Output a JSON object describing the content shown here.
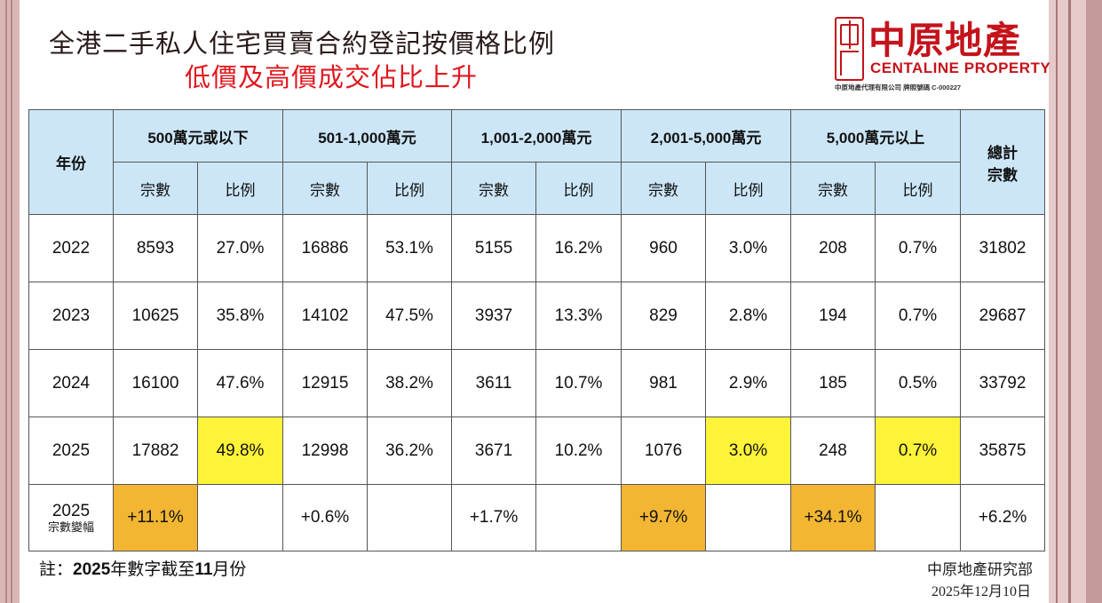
{
  "title": "全港二手私人住宅買賣合約登記按價格比例",
  "subtitle": "低價及高價成交佔比上升",
  "logo": {
    "chinese": "中原地產",
    "english": "CENTALINE PROPERTY",
    "license": "中原地產代理有限公司 牌照號碼 C-000227",
    "brand_color": "#c4131b"
  },
  "table": {
    "year_header": "年份",
    "bands": [
      "500萬元或以下",
      "501-1,000萬元",
      "1,001-2,000萬元",
      "2,001-5,000萬元",
      "5,000萬元以上"
    ],
    "count_label": "宗數",
    "ratio_label": "比例",
    "total_header": "總計\n宗數",
    "rows": [
      {
        "year": "2022",
        "cells": [
          "8593",
          "27.0%",
          "16886",
          "53.1%",
          "5155",
          "16.2%",
          "960",
          "3.0%",
          "208",
          "0.7%"
        ],
        "total": "31802"
      },
      {
        "year": "2023",
        "cells": [
          "10625",
          "35.8%",
          "14102",
          "47.5%",
          "3937",
          "13.3%",
          "829",
          "2.8%",
          "194",
          "0.7%"
        ],
        "total": "29687"
      },
      {
        "year": "2024",
        "cells": [
          "16100",
          "47.6%",
          "12915",
          "38.2%",
          "3611",
          "10.7%",
          "981",
          "2.9%",
          "185",
          "0.5%"
        ],
        "total": "33792"
      },
      {
        "year": "2025",
        "cells": [
          "17882",
          "49.8%",
          "12998",
          "36.2%",
          "3671",
          "10.2%",
          "1076",
          "3.0%",
          "248",
          "0.7%"
        ],
        "total": "35875"
      }
    ],
    "change_row": {
      "year": "2025",
      "label": "宗數變幅",
      "cells": [
        "+11.1%",
        "",
        "+0.6%",
        "",
        "+1.7%",
        "",
        "+9.7%",
        "",
        "+34.1%",
        ""
      ],
      "total": "+6.2%"
    },
    "colors": {
      "header_bg": "#cce6f7",
      "highlight_yellow": "#fdf338",
      "highlight_orange": "#f2b632",
      "highlight_text": "#e0201f"
    }
  },
  "note": {
    "prefix": "註：",
    "year": "2025",
    "mid": "年數字截至",
    "month": "11",
    "suffix": "月份"
  },
  "source": {
    "dept": "中原地產研究部",
    "date": "2025年12月10日"
  }
}
